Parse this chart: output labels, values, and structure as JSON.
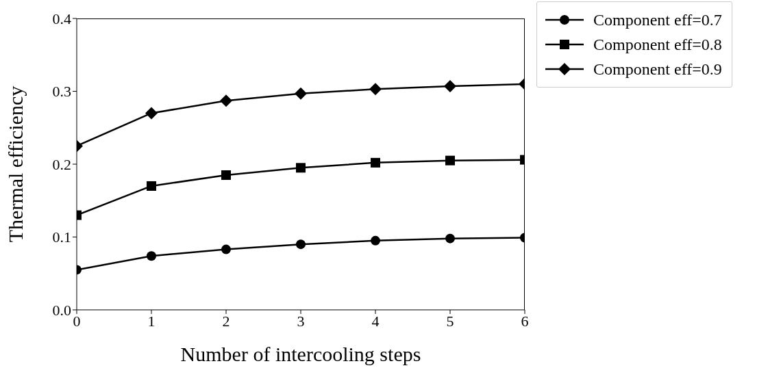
{
  "chart_data": {
    "type": "line",
    "xlabel": "Number of intercooling steps",
    "ylabel": "Thermal efficiency",
    "x": [
      0,
      1,
      2,
      3,
      4,
      5,
      6
    ],
    "series": [
      {
        "name": "Component eff=0.7",
        "color": "#000000",
        "marker": "circle",
        "values": [
          0.055,
          0.074,
          0.083,
          0.09,
          0.095,
          0.098,
          0.099
        ]
      },
      {
        "name": "Component eff=0.8",
        "color": "#000000",
        "marker": "square",
        "values": [
          0.13,
          0.17,
          0.185,
          0.195,
          0.202,
          0.205,
          0.206
        ]
      },
      {
        "name": "Component eff=0.9",
        "color": "#000000",
        "marker": "diamond",
        "values": [
          0.225,
          0.27,
          0.287,
          0.297,
          0.303,
          0.307,
          0.31
        ]
      }
    ],
    "xlim": [
      0,
      6
    ],
    "xticks": [
      0,
      1,
      2,
      3,
      4,
      5,
      6
    ],
    "ylim": [
      0,
      0.4
    ],
    "yticks": [
      {
        "value": 0,
        "label": "0.0"
      },
      0.1,
      0.2,
      0.3,
      0.4
    ],
    "grid": false,
    "legend": "top right",
    "line_style": "solid"
  }
}
